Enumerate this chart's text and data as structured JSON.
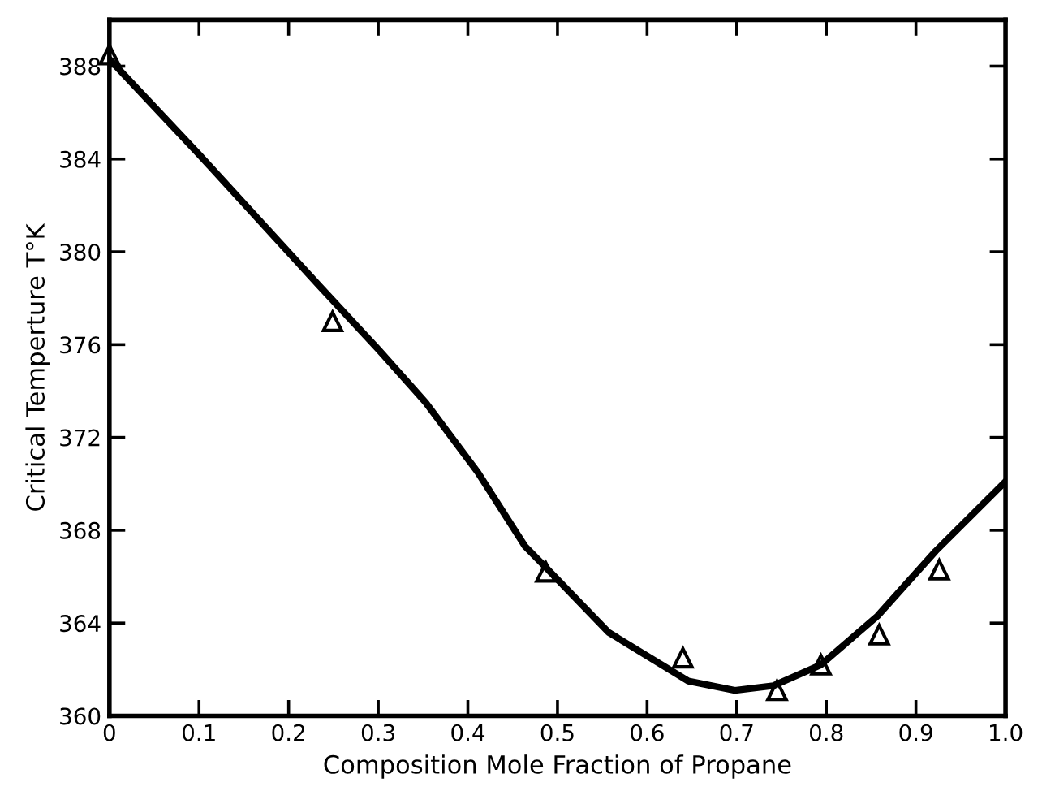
{
  "chart_data": {
    "type": "scatter",
    "xlabel": "Composition Mole Fraction of Propane",
    "ylabel": "Critical Temperture T°K",
    "xlim": [
      0,
      1.0
    ],
    "ylim": [
      360,
      390
    ],
    "xticks": [
      0,
      0.1,
      0.2,
      0.3,
      0.4,
      0.5,
      0.6,
      0.7,
      0.8,
      0.9,
      {
        "value": 1.0,
        "label": "1.0"
      }
    ],
    "yticks": [
      360,
      364,
      368,
      372,
      376,
      380,
      384,
      388
    ],
    "grid": false,
    "legend": false,
    "series": [
      {
        "color": "#000000",
        "marker": "triangle",
        "x": [
          0,
          0.249,
          0.487,
          0.64,
          0.745,
          0.794,
          0.859,
          0.926
        ],
        "values": [
          388.5,
          377.0,
          366.2,
          362.5,
          361.1,
          362.2,
          363.5,
          366.3
        ]
      },
      {
        "type": "line",
        "color": "#000000",
        "marker": "none",
        "line_style": "solid",
        "x": [
          0,
          0.1,
          0.235,
          0.3,
          0.353,
          0.411,
          0.464,
          0.487,
          0.557,
          0.646,
          0.698,
          0.741,
          0.794,
          0.857,
          0.922,
          1.0
        ],
        "values": [
          388.3,
          384.2,
          378.5,
          375.8,
          373.5,
          370.5,
          367.3,
          366.4,
          363.6,
          361.5,
          361.1,
          361.3,
          362.2,
          364.3,
          367.1,
          370.1
        ]
      }
    ]
  }
}
